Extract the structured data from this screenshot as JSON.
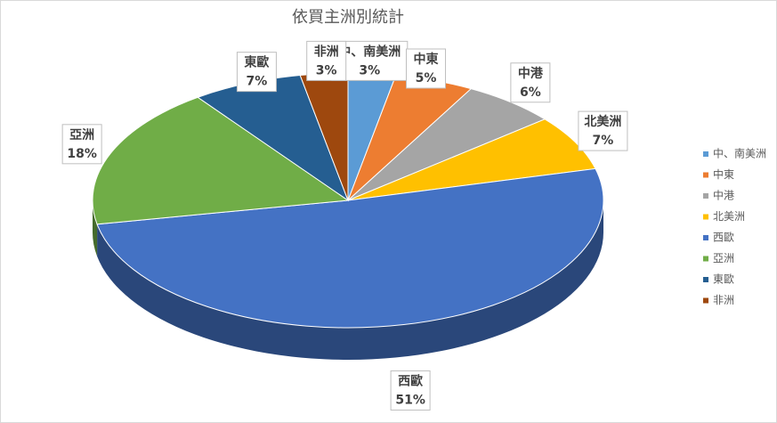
{
  "chart_data": {
    "type": "pie3d",
    "title": "依買主洲別統計",
    "categories": [
      "中、南美洲",
      "中東",
      "中港",
      "北美洲",
      "西歐",
      "亞洲",
      "東歐",
      "非洲"
    ],
    "values": [
      3,
      5,
      6,
      7,
      51,
      18,
      7,
      3
    ],
    "value_labels": [
      "3%",
      "5%",
      "6%",
      "7%",
      "51%",
      "18%",
      "7%",
      "3%"
    ],
    "colors": [
      "#5b9bd5",
      "#ed7d31",
      "#a5a5a5",
      "#ffc000",
      "#4472c4",
      "#70ad47",
      "#255e91",
      "#9e480e"
    ],
    "legend": "right"
  }
}
